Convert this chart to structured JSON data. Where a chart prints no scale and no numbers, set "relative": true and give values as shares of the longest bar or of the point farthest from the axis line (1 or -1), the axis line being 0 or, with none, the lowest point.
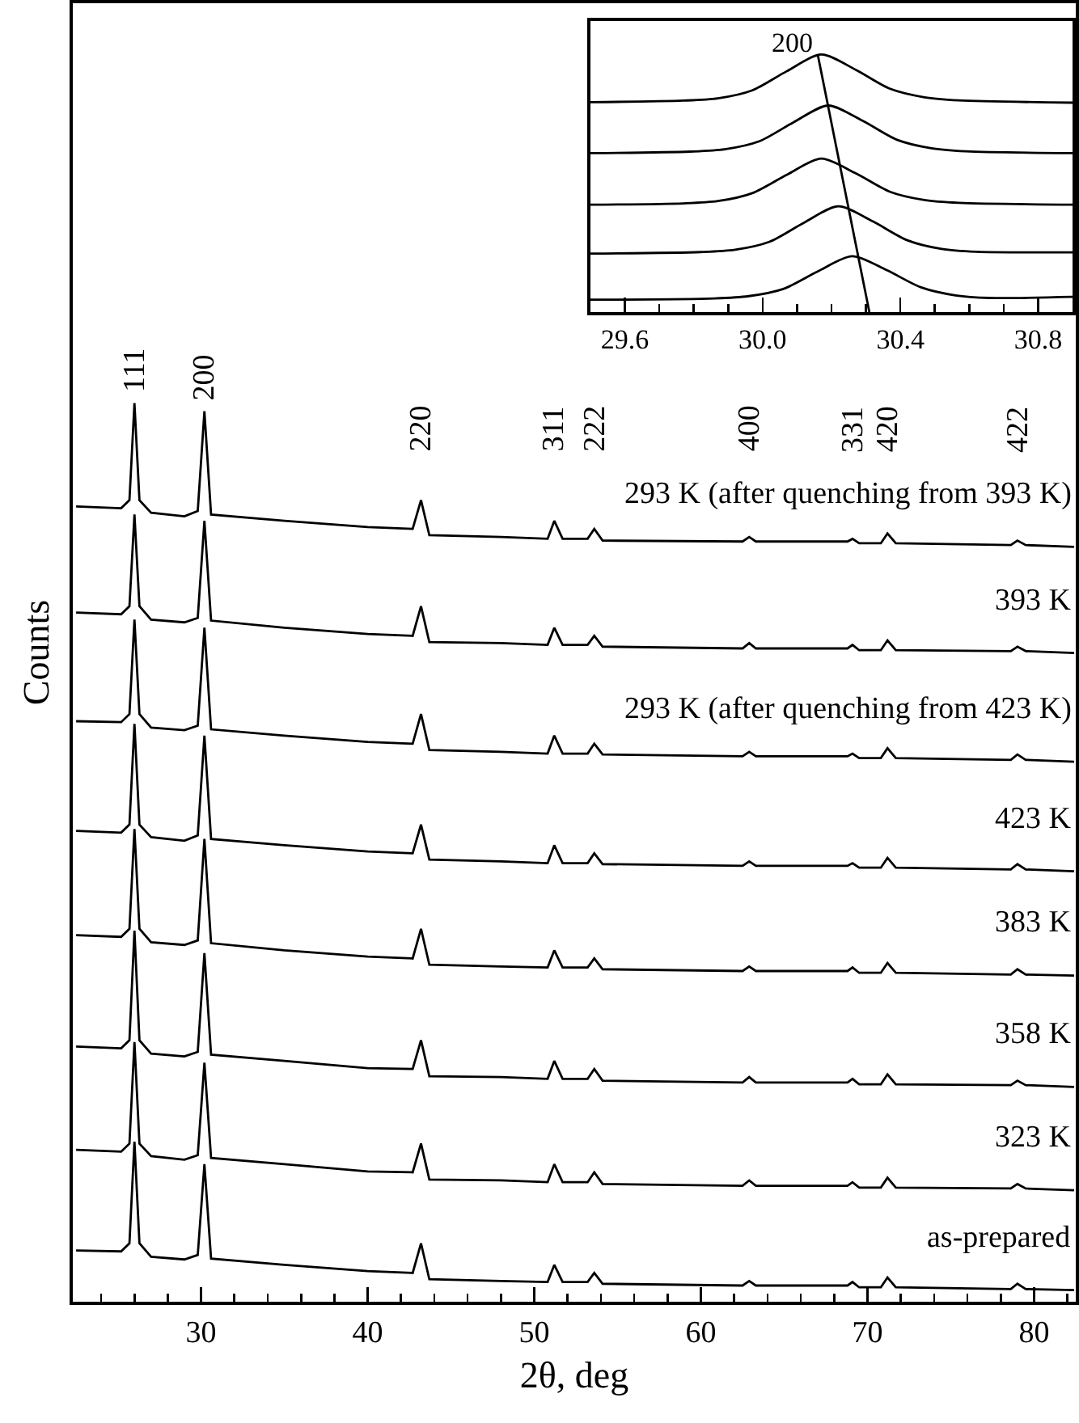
{
  "chart_data": [
    {
      "type": "line",
      "xlabel": "2θ, deg",
      "ylabel": "Counts",
      "relative": true,
      "xlim": [
        22.3,
        82.5
      ],
      "xticks": [
        {
          "value": 24,
          "label": null
        },
        {
          "value": 26,
          "label": null
        },
        {
          "value": 28,
          "label": null
        },
        30,
        {
          "value": 32,
          "label": null
        },
        {
          "value": 34,
          "label": null
        },
        {
          "value": 36,
          "label": null
        },
        {
          "value": 38,
          "label": null
        },
        40,
        {
          "value": 42,
          "label": null
        },
        {
          "value": 44,
          "label": null
        },
        {
          "value": 46,
          "label": null
        },
        {
          "value": 48,
          "label": null
        },
        50,
        {
          "value": 52,
          "label": null
        },
        {
          "value": 54,
          "label": null
        },
        {
          "value": 56,
          "label": null
        },
        {
          "value": 58,
          "label": null
        },
        60,
        {
          "value": 62,
          "label": null
        },
        {
          "value": 64,
          "label": null
        },
        {
          "value": 66,
          "label": null
        },
        {
          "value": 68,
          "label": null
        },
        70,
        {
          "value": 72,
          "label": null
        },
        {
          "value": 74,
          "label": null
        },
        {
          "value": 76,
          "label": null
        },
        {
          "value": 78,
          "label": null
        },
        80,
        {
          "value": 82,
          "label": null
        }
      ],
      "x": [
        22.5,
        25.2,
        25.7,
        26.0,
        26.3,
        27.0,
        29.0,
        29.8,
        30.2,
        30.6,
        35,
        40,
        42.7,
        43.2,
        43.7,
        48,
        50.8,
        51.2,
        51.7,
        53.2,
        53.6,
        54.1,
        62.5,
        62.9,
        63.3,
        68.8,
        69.1,
        69.5,
        70.8,
        71.2,
        71.7,
        78.6,
        79.0,
        79.5,
        82.4
      ],
      "series": [
        {
          "name": "293 K (after quenching from 393 K)",
          "color": "#000000",
          "values": [
            0.885,
            0.883,
            0.892,
            1,
            0.892,
            0.878,
            0.874,
            0.88,
            0.991,
            0.876,
            0.869,
            0.862,
            0.86,
            0.892,
            0.853,
            0.851,
            0.849,
            0.869,
            0.849,
            0.849,
            0.86,
            0.847,
            0.846,
            0.851,
            0.846,
            0.846,
            0.849,
            0.844,
            0.844,
            0.855,
            0.844,
            0.842,
            0.847,
            0.842,
            0.84
          ]
        },
        {
          "name": "393 K",
          "color": "#000000",
          "values": [
            0.767,
            0.765,
            0.774,
            0.876,
            0.774,
            0.759,
            0.756,
            0.761,
            0.869,
            0.758,
            0.75,
            0.743,
            0.741,
            0.774,
            0.734,
            0.733,
            0.731,
            0.75,
            0.731,
            0.731,
            0.741,
            0.729,
            0.727,
            0.733,
            0.727,
            0.727,
            0.731,
            0.725,
            0.725,
            0.736,
            0.725,
            0.724,
            0.729,
            0.724,
            0.722
          ]
        },
        {
          "name": "293 K (after quenching from 423 K)",
          "color": "#000000",
          "values": [
            0.646,
            0.645,
            0.654,
            0.759,
            0.654,
            0.639,
            0.636,
            0.641,
            0.75,
            0.637,
            0.63,
            0.623,
            0.621,
            0.654,
            0.614,
            0.612,
            0.61,
            0.63,
            0.61,
            0.61,
            0.621,
            0.609,
            0.607,
            0.612,
            0.607,
            0.607,
            0.61,
            0.605,
            0.605,
            0.616,
            0.605,
            0.603,
            0.609,
            0.603,
            0.601
          ]
        },
        {
          "name": "423 K",
          "color": "#000000",
          "values": [
            0.524,
            0.522,
            0.531,
            0.643,
            0.531,
            0.517,
            0.513,
            0.519,
            0.63,
            0.515,
            0.508,
            0.501,
            0.499,
            0.531,
            0.492,
            0.49,
            0.488,
            0.508,
            0.488,
            0.488,
            0.499,
            0.487,
            0.485,
            0.49,
            0.485,
            0.485,
            0.488,
            0.483,
            0.483,
            0.494,
            0.483,
            0.481,
            0.487,
            0.481,
            0.479
          ]
        },
        {
          "name": "383 K",
          "color": "#000000",
          "values": [
            0.408,
            0.406,
            0.415,
            0.526,
            0.415,
            0.4,
            0.397,
            0.402,
            0.515,
            0.399,
            0.391,
            0.384,
            0.382,
            0.415,
            0.375,
            0.373,
            0.372,
            0.391,
            0.372,
            0.372,
            0.382,
            0.37,
            0.368,
            0.373,
            0.368,
            0.368,
            0.372,
            0.366,
            0.366,
            0.377,
            0.366,
            0.364,
            0.37,
            0.364,
            0.363
          ]
        },
        {
          "name": "358 K",
          "color": "#000000",
          "values": [
            0.284,
            0.282,
            0.291,
            0.413,
            0.291,
            0.276,
            0.273,
            0.278,
            0.388,
            0.275,
            0.268,
            0.26,
            0.259,
            0.291,
            0.251,
            0.25,
            0.248,
            0.268,
            0.248,
            0.248,
            0.259,
            0.246,
            0.244,
            0.25,
            0.244,
            0.244,
            0.248,
            0.242,
            0.242,
            0.253,
            0.242,
            0.241,
            0.246,
            0.241,
            0.239
          ]
        },
        {
          "name": "323 K",
          "color": "#000000",
          "values": [
            0.169,
            0.167,
            0.176,
            0.289,
            0.176,
            0.162,
            0.158,
            0.163,
            0.266,
            0.16,
            0.153,
            0.145,
            0.144,
            0.176,
            0.136,
            0.135,
            0.133,
            0.153,
            0.133,
            0.133,
            0.144,
            0.131,
            0.129,
            0.135,
            0.129,
            0.129,
            0.133,
            0.127,
            0.127,
            0.138,
            0.127,
            0.126,
            0.131,
            0.126,
            0.124
          ]
        },
        {
          "name": "as-prepared",
          "color": "#000000",
          "values": [
            0.057,
            0.056,
            0.065,
            0.178,
            0.065,
            0.05,
            0.047,
            0.052,
            0.153,
            0.048,
            0.041,
            0.034,
            0.032,
            0.065,
            0.025,
            0.023,
            0.022,
            0.041,
            0.022,
            0.022,
            0.032,
            0.02,
            0.018,
            0.023,
            0.018,
            0.018,
            0.022,
            0.016,
            0.016,
            0.027,
            0.016,
            0.014,
            0.02,
            0.014,
            0.013
          ]
        }
      ],
      "annotations": [
        {
          "text": "111",
          "x": 26.0,
          "y": 1
        },
        {
          "text": "200",
          "x": 30.2,
          "y": 0.991
        },
        {
          "text": "220",
          "x": 43.2,
          "y": 0.892
        },
        {
          "text": "311",
          "x": 51.2,
          "y": 0.869
        },
        {
          "text": "222",
          "x": 53.6,
          "y": 0.86
        },
        {
          "text": "400",
          "x": 62.9,
          "y": 0.851
        },
        {
          "text": "331",
          "x": 69.1,
          "y": 0.849
        },
        {
          "text": "420",
          "x": 71.2,
          "y": 0.855
        },
        {
          "text": "422",
          "x": 79.0,
          "y": 0.847
        }
      ]
    },
    {
      "type": "line",
      "relative": true,
      "xlim": [
        29.5,
        30.9
      ],
      "xticks": [
        29.6,
        {
          "value": 29.7,
          "label": null
        },
        {
          "value": 29.8,
          "label": null
        },
        {
          "value": 29.9,
          "label": null
        },
        {
          "value": 30.0,
          "label": "30.0"
        },
        {
          "value": 30.1,
          "label": null
        },
        {
          "value": 30.2,
          "label": null
        },
        {
          "value": 30.3,
          "label": null
        },
        30.4,
        {
          "value": 30.5,
          "label": null
        },
        {
          "value": 30.6,
          "label": null
        },
        {
          "value": 30.7,
          "label": null
        },
        30.8
      ],
      "series": [
        {
          "color": "#000000",
          "x": [
            29.5,
            29.77,
            29.87,
            29.97,
            30.07,
            30.17,
            30.27,
            30.37,
            30.47,
            30.57,
            30.9
          ],
          "values": [
            0.815,
            0.821,
            0.83,
            0.861,
            0.935,
            1,
            0.941,
            0.867,
            0.834,
            0.822,
            0.813
          ]
        },
        {
          "color": "#000000",
          "x": [
            29.5,
            29.79,
            29.89,
            29.99,
            30.09,
            30.19,
            30.29,
            30.39,
            30.49,
            30.59,
            30.9
          ],
          "values": [
            0.617,
            0.623,
            0.632,
            0.663,
            0.737,
            0.802,
            0.743,
            0.669,
            0.636,
            0.624,
            0.617
          ]
        },
        {
          "color": "#000000",
          "x": [
            29.5,
            29.77,
            29.87,
            29.97,
            30.07,
            30.17,
            30.27,
            30.37,
            30.47,
            30.57,
            30.9
          ],
          "values": [
            0.417,
            0.422,
            0.431,
            0.462,
            0.533,
            0.596,
            0.539,
            0.467,
            0.435,
            0.424,
            0.417
          ]
        },
        {
          "color": "#000000",
          "x": [
            29.5,
            29.82,
            29.92,
            30.02,
            30.12,
            30.22,
            30.32,
            30.42,
            30.52,
            30.62,
            30.9
          ],
          "values": [
            0.227,
            0.233,
            0.242,
            0.273,
            0.347,
            0.411,
            0.352,
            0.279,
            0.245,
            0.234,
            0.232
          ]
        },
        {
          "color": "#000000",
          "x": [
            29.5,
            29.86,
            29.96,
            30.06,
            30.16,
            30.26,
            30.36,
            30.46,
            30.56,
            30.66,
            30.9
          ],
          "values": [
            0.048,
            0.053,
            0.062,
            0.09,
            0.158,
            0.217,
            0.163,
            0.096,
            0.065,
            0.055,
            0.059
          ]
        },
        {
          "color": "#000000",
          "x": [
            30.16,
            30.31
          ],
          "values": [
            1,
            0
          ]
        }
      ],
      "annotations": [
        {
          "text": "200",
          "x": 30.16,
          "y": 1
        }
      ]
    }
  ]
}
